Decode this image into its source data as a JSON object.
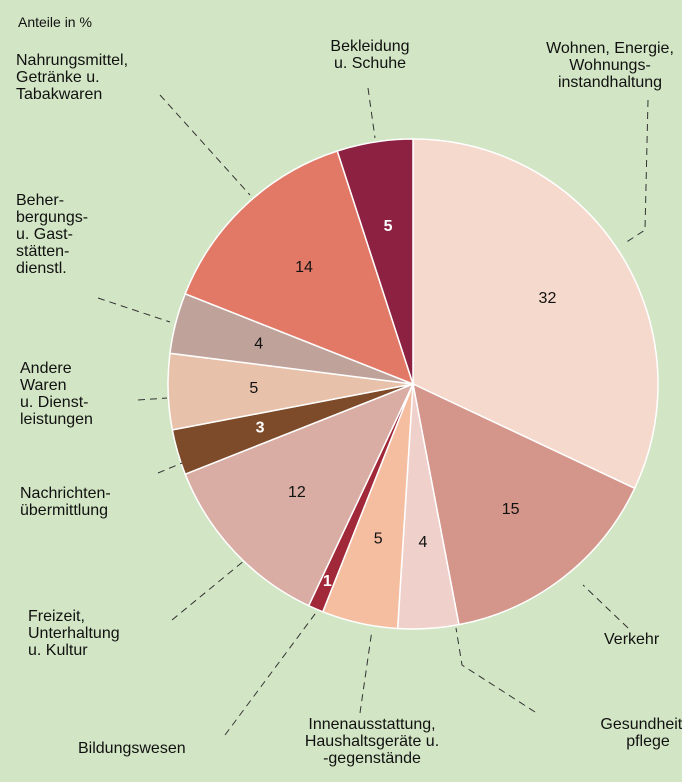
{
  "chart_data": {
    "type": "pie",
    "subtitle": "Anteile in %",
    "categories": [
      "Wohnen, Energie,\nWohnungs-\ninstandhaltung",
      "Verkehr",
      "Gesundheits-\npflege",
      "Innenausstattung,\nHaushaltsgeräte u.\n-gegenstände",
      "Bildungswesen",
      "Freizeit,\nUnterhaltung\nu. Kultur",
      "Nachrichten-\nübermittlung",
      "Andere\nWaren\nu. Dienst-\nleistungen",
      "Beher-\nbergungs-\nu. Gast-\nstätten-\ndienstl.",
      "Nahrungsmittel,\nGetränke u.\nTabakwaren",
      "Bekleidung\nu. Schuhe"
    ],
    "values": [
      32,
      15,
      4,
      5,
      1,
      12,
      3,
      5,
      4,
      14,
      5
    ],
    "colors": [
      "#f6d9cd",
      "#d4958a",
      "#f0d0ca",
      "#f5bea0",
      "#a02838",
      "#d9ada3",
      "#7d4b2a",
      "#e8c1aa",
      "#bfa39b",
      "#e27966",
      "#8c2142"
    ]
  }
}
